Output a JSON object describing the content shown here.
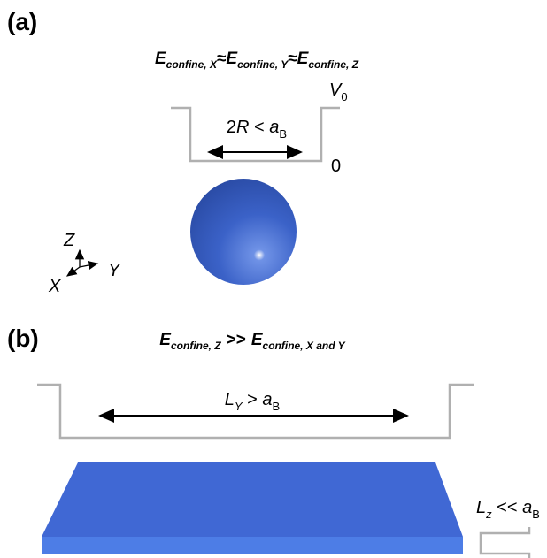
{
  "panel_a": {
    "label": "(a)",
    "equation": {
      "terms": [
        {
          "symbol": "E",
          "sub": "confine, X"
        },
        {
          "symbol": "E",
          "sub": "confine, Y"
        },
        {
          "symbol": "E",
          "sub": "confine, Z"
        }
      ],
      "relations": [
        "≈",
        "≈"
      ]
    },
    "barrier": {
      "symbol": "V",
      "sub": "0"
    },
    "floor": "0",
    "width": {
      "parts": [
        "2",
        "R",
        " < ",
        "a"
      ],
      "sub": "B"
    },
    "axes": {
      "z": "Z",
      "y": "Y",
      "x": "X"
    }
  },
  "panel_b": {
    "label": "(b)",
    "equation": {
      "terms": [
        {
          "symbol": "E",
          "sub": "confine, Z"
        },
        {
          "symbol": "E",
          "sub": "confine, X and Y"
        }
      ],
      "relations": [
        ">>"
      ]
    },
    "length": {
      "symbol": "L",
      "sub": "Y",
      "relation": " > ",
      "a": "a",
      "a_sub": "B"
    },
    "thickness": {
      "symbol": "L",
      "sub": "z",
      "relation": " << ",
      "a": "a",
      "a_sub": "B"
    }
  }
}
